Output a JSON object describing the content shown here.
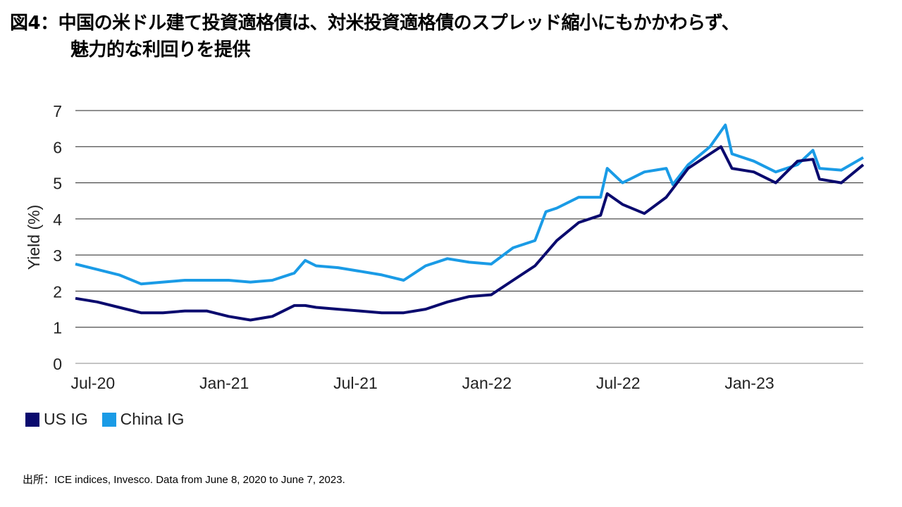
{
  "title_line1": "図4：中国の米ドル建て投資適格債は、対米投資適格債のスプレッド縮小にもかかわらず、",
  "title_line2": "魅力的な利回りを提供",
  "source": "出所：ICE indices, Invesco. Data from June 8, 2020 to June 7, 2023.",
  "chart_data": {
    "type": "line",
    "ylabel": "Yield (%)",
    "xlabel": "",
    "ylim": [
      0,
      7
    ],
    "yticks": [
      0,
      1,
      2,
      3,
      4,
      5,
      6,
      7
    ],
    "x_unit": "months since 2020-06-08",
    "xlim": [
      0,
      36
    ],
    "xticks": [
      {
        "x": 0.8,
        "label": "Jul-20"
      },
      {
        "x": 6.8,
        "label": "Jan-21"
      },
      {
        "x": 12.8,
        "label": "Jul-21"
      },
      {
        "x": 18.8,
        "label": "Jan-22"
      },
      {
        "x": 24.8,
        "label": "Jul-22"
      },
      {
        "x": 30.8,
        "label": "Jan-23"
      }
    ],
    "grid": true,
    "legend_position": "bottom-left",
    "series": [
      {
        "name": "US IG",
        "color": "#0a0a6e",
        "x": [
          0,
          1,
          2,
          3,
          4,
          5,
          6,
          7,
          8,
          9,
          10,
          10.5,
          11,
          12,
          13,
          14,
          15,
          16,
          17,
          18,
          19,
          20,
          21,
          22,
          23,
          24,
          24.3,
          25,
          26,
          27,
          28,
          29,
          29.5,
          30,
          31,
          32,
          33,
          33.7,
          34,
          35,
          36
        ],
        "y": [
          1.8,
          1.7,
          1.55,
          1.4,
          1.4,
          1.45,
          1.45,
          1.3,
          1.2,
          1.3,
          1.6,
          1.6,
          1.55,
          1.5,
          1.45,
          1.4,
          1.4,
          1.5,
          1.7,
          1.85,
          1.9,
          2.3,
          2.7,
          3.4,
          3.9,
          4.1,
          4.7,
          4.4,
          4.15,
          4.6,
          5.4,
          5.8,
          6.0,
          5.4,
          5.3,
          5.0,
          5.6,
          5.65,
          5.1,
          5.0,
          5.5
        ]
      },
      {
        "name": "China IG",
        "color": "#1a9be6",
        "x": [
          0,
          1,
          2,
          3,
          4,
          5,
          6,
          7,
          8,
          9,
          10,
          10.5,
          11,
          12,
          13,
          14,
          15,
          16,
          17,
          18,
          19,
          20,
          21,
          21.5,
          22,
          23,
          24,
          24.3,
          25,
          26,
          27,
          27.3,
          28,
          29,
          29.7,
          30,
          31,
          32,
          33,
          33.7,
          34,
          35,
          36
        ],
        "y": [
          2.75,
          2.6,
          2.45,
          2.2,
          2.25,
          2.3,
          2.3,
          2.3,
          2.25,
          2.3,
          2.5,
          2.85,
          2.7,
          2.65,
          2.55,
          2.45,
          2.3,
          2.7,
          2.9,
          2.8,
          2.75,
          3.2,
          3.4,
          4.2,
          4.3,
          4.6,
          4.6,
          5.4,
          5.0,
          5.3,
          5.4,
          4.95,
          5.5,
          6.0,
          6.6,
          5.8,
          5.6,
          5.3,
          5.5,
          5.9,
          5.4,
          5.35,
          5.7
        ]
      }
    ]
  }
}
